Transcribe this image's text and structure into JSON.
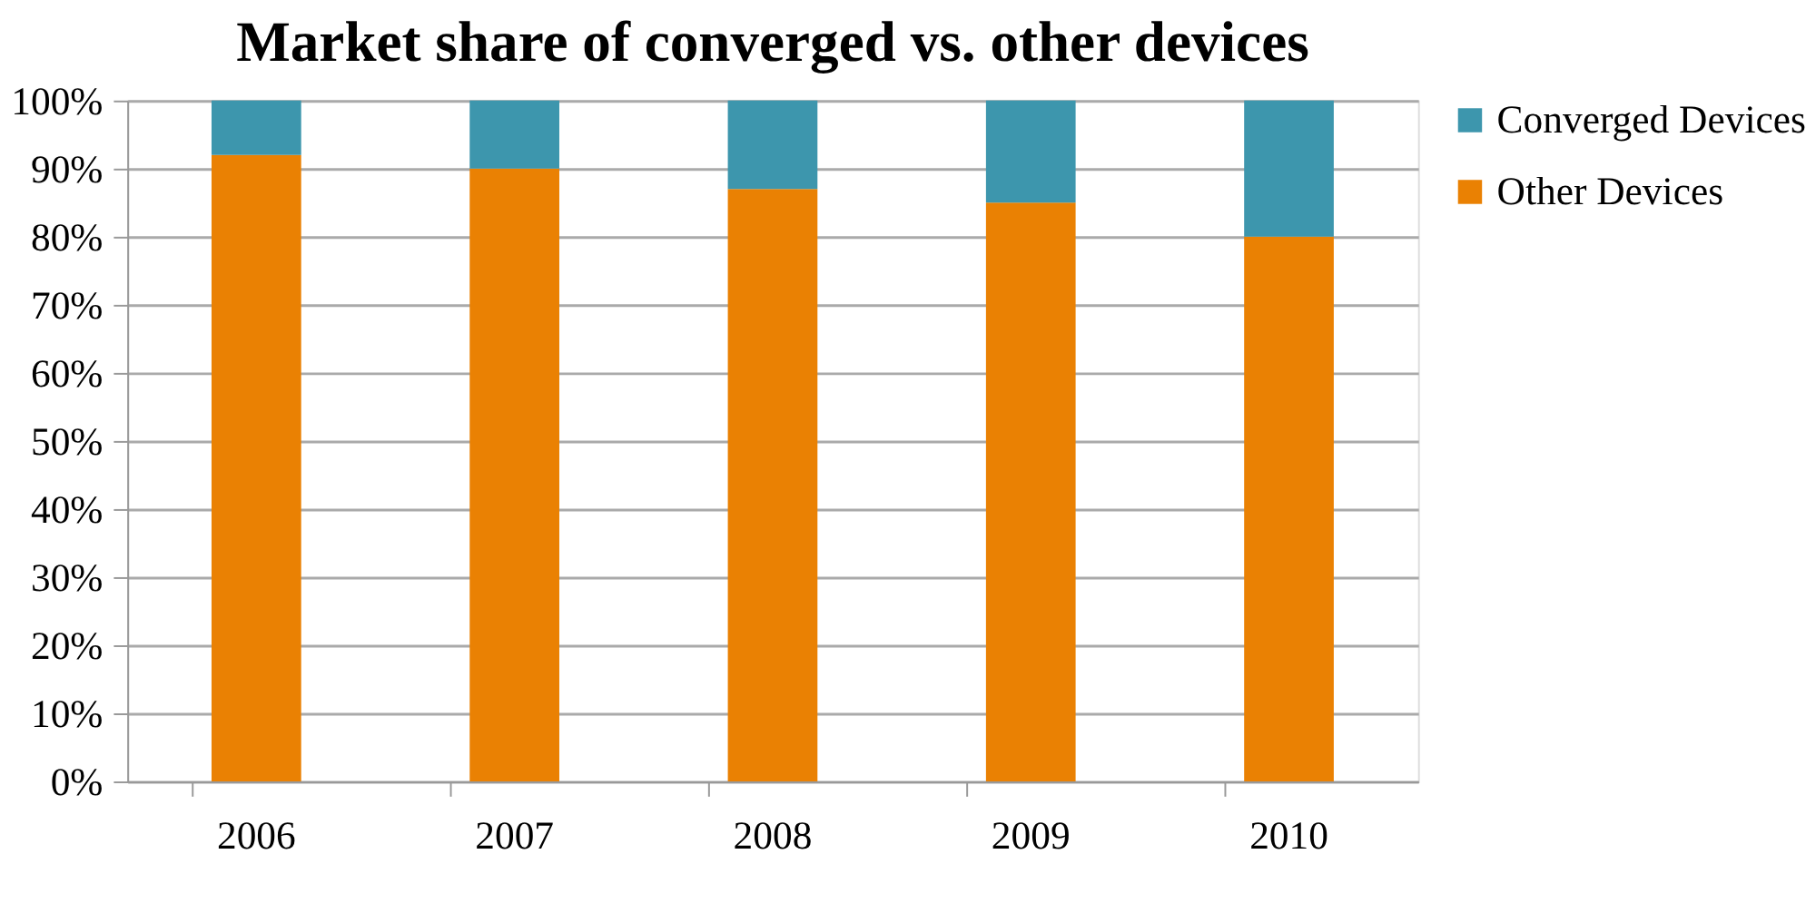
{
  "chart_data": {
    "type": "bar",
    "title": "Market share of converged vs. other devices",
    "categories": [
      "2006",
      "2007",
      "2008",
      "2009",
      "2010"
    ],
    "stacked": true,
    "series": [
      {
        "name": "Other Devices",
        "color": "#ea8103",
        "values": [
          92,
          90,
          87,
          85,
          80
        ]
      },
      {
        "name": "Converged Devices",
        "color": "#3d96ad",
        "values": [
          8,
          10,
          13,
          15,
          20
        ]
      }
    ],
    "ylim": [
      0,
      100
    ],
    "yticks": [
      {
        "value": 0,
        "label": "0%"
      },
      {
        "value": 10,
        "label": "10%"
      },
      {
        "value": 20,
        "label": "20%"
      },
      {
        "value": 30,
        "label": "30%"
      },
      {
        "value": 40,
        "label": "40%"
      },
      {
        "value": 50,
        "label": "50%"
      },
      {
        "value": 60,
        "label": "60%"
      },
      {
        "value": 70,
        "label": "70%"
      },
      {
        "value": 80,
        "label": "80%"
      },
      {
        "value": 90,
        "label": "90%"
      },
      {
        "value": 100,
        "label": "100%"
      }
    ],
    "grid": "y",
    "legend": "right"
  }
}
